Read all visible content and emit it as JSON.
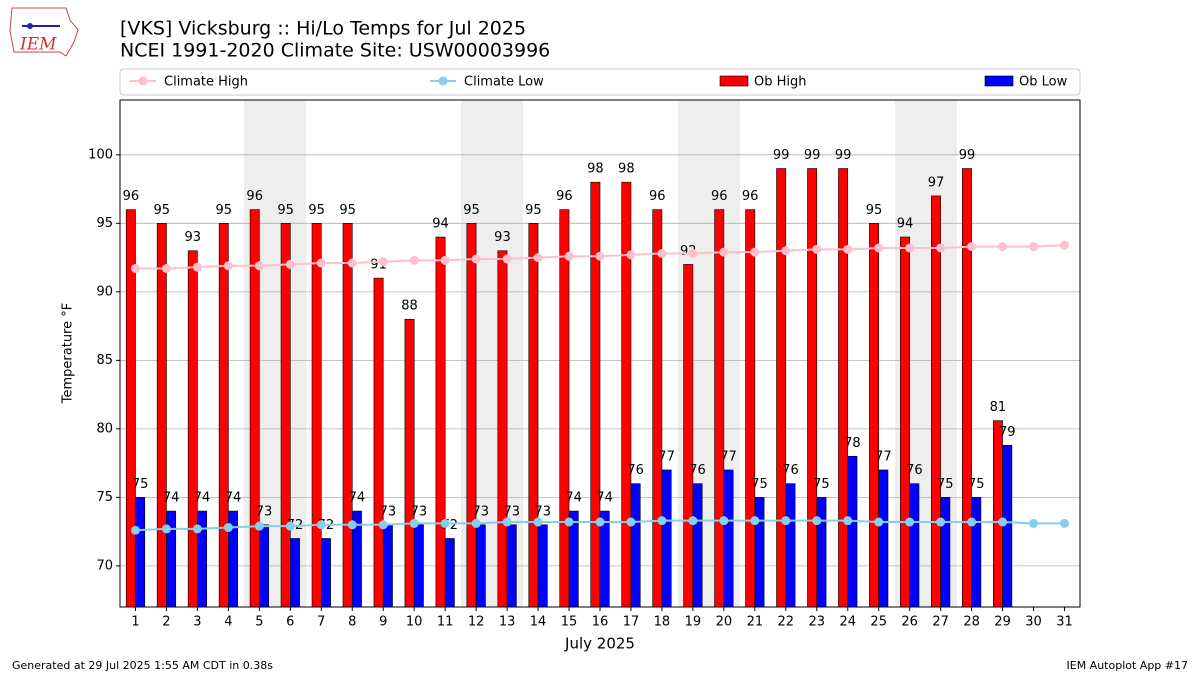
{
  "logo_text": "IEM",
  "footer_left": "Generated at 29 Jul 2025 1:55 AM CDT in 0.38s",
  "footer_right": "IEM Autoplot App #17",
  "chart_data": {
    "type": "bar",
    "title": "[VKS] Vicksburg :: Hi/Lo Temps for Jul 2025",
    "subtitle": "NCEI 1991-2020 Climate Site: USW00003996",
    "x_label": "July 2025",
    "y_label": "Temperature °F",
    "categories": [
      "1",
      "2",
      "3",
      "4",
      "5",
      "6",
      "7",
      "8",
      "9",
      "10",
      "11",
      "12",
      "13",
      "14",
      "15",
      "16",
      "17",
      "18",
      "19",
      "20",
      "21",
      "22",
      "23",
      "24",
      "25",
      "26",
      "27",
      "28",
      "29",
      "30",
      "31"
    ],
    "ylim": [
      67,
      104
    ],
    "yticks": [
      70,
      75,
      80,
      85,
      90,
      95,
      100
    ],
    "grid": true,
    "series": [
      {
        "name": "Climate High",
        "type": "line",
        "color": "#ffc0cb",
        "values": [
          91.7,
          91.7,
          91.8,
          91.9,
          91.9,
          92.0,
          92.1,
          92.1,
          92.2,
          92.3,
          92.3,
          92.4,
          92.4,
          92.5,
          92.6,
          92.6,
          92.7,
          92.8,
          92.8,
          92.9,
          92.9,
          93.0,
          93.1,
          93.1,
          93.2,
          93.2,
          93.2,
          93.3,
          93.3,
          93.3,
          93.4
        ]
      },
      {
        "name": "Climate Low",
        "type": "line",
        "color": "#87ceeb",
        "values": [
          72.6,
          72.7,
          72.7,
          72.8,
          72.9,
          72.9,
          73.0,
          73.0,
          73.0,
          73.1,
          73.1,
          73.1,
          73.2,
          73.2,
          73.2,
          73.2,
          73.2,
          73.3,
          73.3,
          73.3,
          73.3,
          73.3,
          73.3,
          73.3,
          73.2,
          73.2,
          73.2,
          73.2,
          73.2,
          73.1,
          73.1
        ]
      },
      {
        "name": "Ob High",
        "type": "bar",
        "color": "#ff0000",
        "values": [
          96,
          95,
          93,
          95,
          96,
          95,
          95,
          95,
          91,
          88,
          94,
          95,
          93,
          95,
          96,
          98,
          98,
          96,
          92,
          96,
          96,
          99,
          99,
          99,
          95,
          94,
          97,
          99,
          80.6,
          null,
          null
        ],
        "value_labels": [
          "96",
          "95",
          "93",
          "95",
          "96",
          "95",
          "95",
          "95",
          "91",
          "88",
          "94",
          "95",
          "93",
          "95",
          "96",
          "98",
          "98",
          "96",
          "92",
          "96",
          "96",
          "99",
          "99",
          "99",
          "95",
          "94",
          "97",
          "99",
          "81",
          null,
          null
        ]
      },
      {
        "name": "Ob Low",
        "type": "bar",
        "color": "#0000ff",
        "values": [
          75,
          74,
          74,
          74,
          73,
          72,
          72,
          74,
          73,
          73,
          72,
          73,
          73,
          73,
          74,
          74,
          76,
          77,
          76,
          77,
          75,
          76,
          75,
          78,
          77,
          76,
          75,
          75,
          78.8,
          null,
          null
        ],
        "value_labels": [
          "75",
          "74",
          "74",
          "74",
          "73",
          "72",
          "72",
          "74",
          "73",
          "73",
          "72",
          "73",
          "73",
          "73",
          "74",
          "74",
          "76",
          "77",
          "76",
          "77",
          "75",
          "76",
          "75",
          "78",
          "77",
          "76",
          "75",
          "75",
          "79",
          null,
          null
        ]
      }
    ]
  }
}
